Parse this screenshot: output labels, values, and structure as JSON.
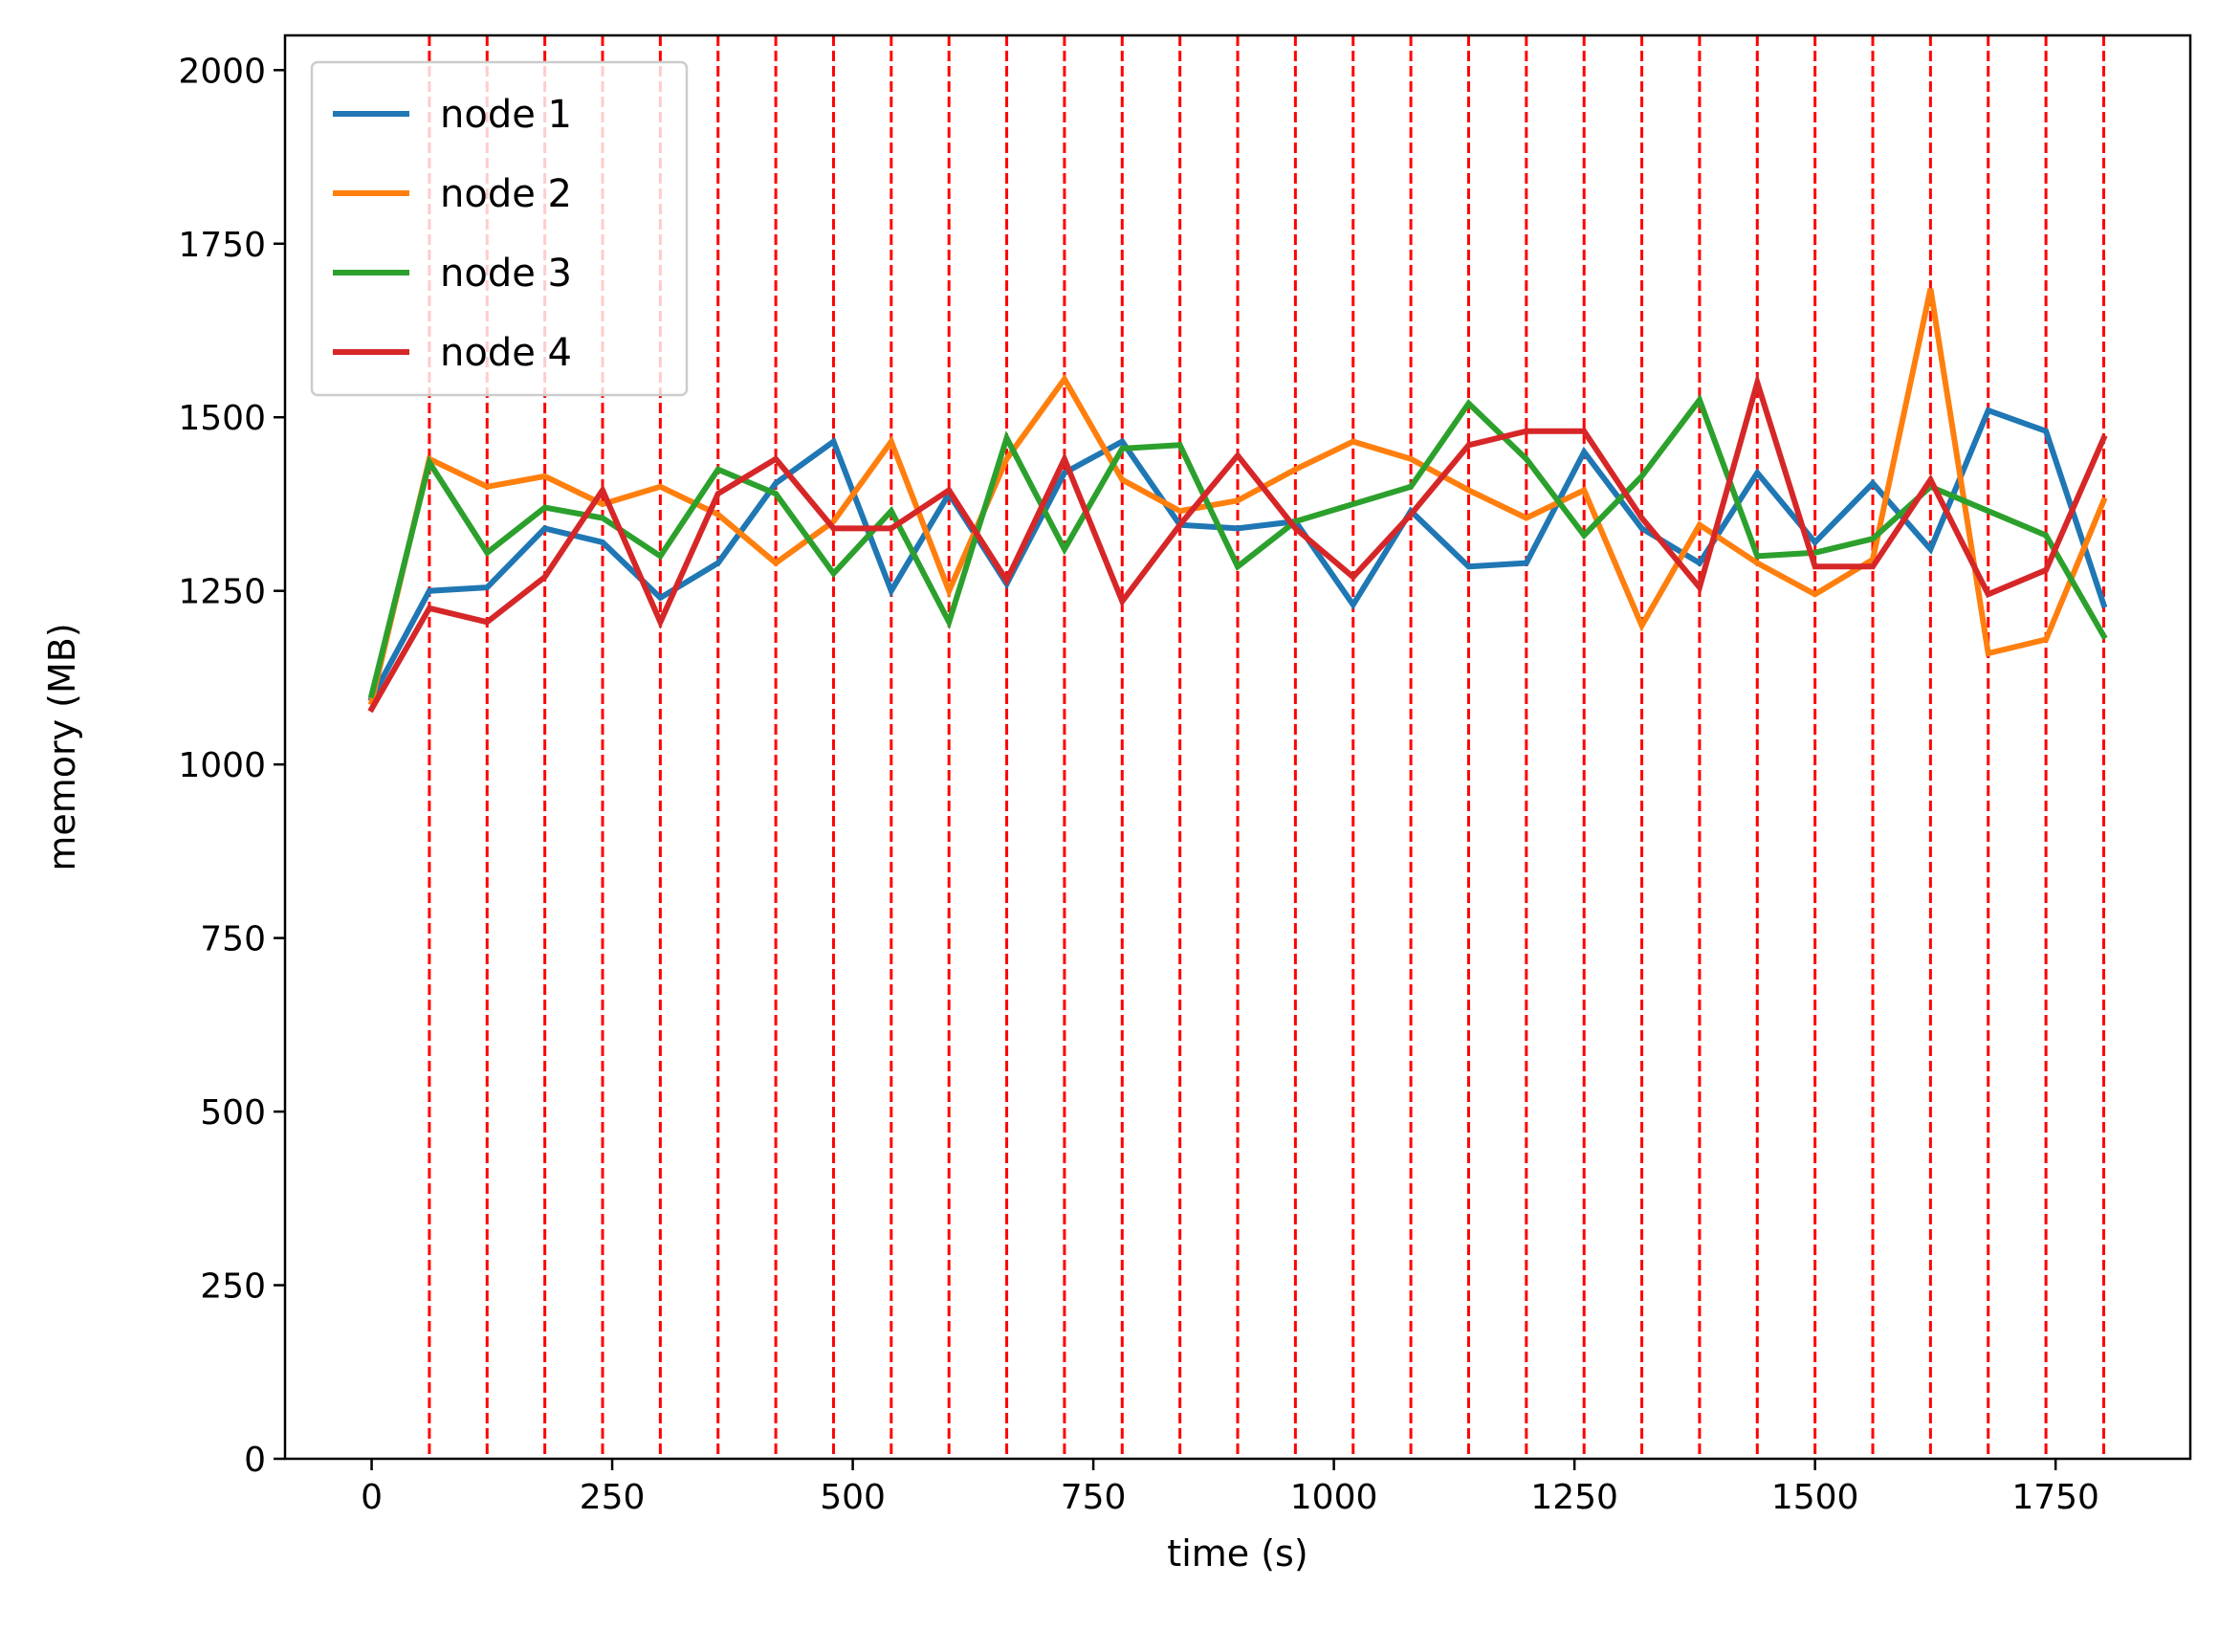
{
  "chart_data": {
    "type": "line",
    "xlabel": "time (s)",
    "ylabel": "memory (MB)",
    "xlim": [
      -90,
      1890
    ],
    "ylim": [
      0,
      2050
    ],
    "xticks": [
      0,
      250,
      500,
      750,
      1000,
      1250,
      1500,
      1750
    ],
    "yticks": [
      0,
      250,
      500,
      750,
      1000,
      1250,
      1500,
      1750,
      2000
    ],
    "grid": false,
    "legend_position": "upper-left",
    "vlines": {
      "color": "#ff0000",
      "style": "dashed",
      "x": [
        60,
        120,
        180,
        240,
        300,
        360,
        420,
        480,
        540,
        600,
        660,
        720,
        780,
        840,
        900,
        960,
        1020,
        1080,
        1140,
        1200,
        1260,
        1320,
        1380,
        1440,
        1500,
        1560,
        1620,
        1680,
        1740,
        1800
      ]
    },
    "x": [
      0,
      60,
      120,
      180,
      240,
      300,
      360,
      420,
      480,
      540,
      600,
      660,
      720,
      780,
      840,
      900,
      960,
      1020,
      1080,
      1140,
      1200,
      1260,
      1320,
      1380,
      1440,
      1500,
      1560,
      1620,
      1680,
      1740,
      1800
    ],
    "series": [
      {
        "name": "node 1",
        "color": "#1f77b4",
        "values": [
          1095,
          1250,
          1255,
          1340,
          1320,
          1240,
          1290,
          1405,
          1465,
          1250,
          1390,
          1260,
          1420,
          1465,
          1345,
          1340,
          1350,
          1230,
          1365,
          1285,
          1290,
          1450,
          1340,
          1290,
          1420,
          1320,
          1405,
          1310,
          1510,
          1480,
          1230
        ]
      },
      {
        "name": "node 2",
        "color": "#ff7f0e",
        "values": [
          1090,
          1440,
          1400,
          1415,
          1375,
          1400,
          1360,
          1290,
          1350,
          1465,
          1250,
          1440,
          1555,
          1410,
          1365,
          1380,
          1425,
          1465,
          1440,
          1395,
          1355,
          1395,
          1200,
          1345,
          1290,
          1245,
          1295,
          1685,
          1160,
          1180,
          1380
        ]
      },
      {
        "name": "node 3",
        "color": "#2ca02c",
        "values": [
          1100,
          1435,
          1305,
          1370,
          1355,
          1300,
          1425,
          1390,
          1275,
          1365,
          1205,
          1470,
          1310,
          1455,
          1460,
          1285,
          1350,
          1375,
          1400,
          1520,
          1440,
          1330,
          1415,
          1525,
          1300,
          1305,
          1325,
          1400,
          1365,
          1330,
          1185
        ]
      },
      {
        "name": "node 4",
        "color": "#d62728",
        "values": [
          1080,
          1225,
          1205,
          1270,
          1395,
          1205,
          1390,
          1440,
          1340,
          1340,
          1395,
          1265,
          1440,
          1235,
          1345,
          1445,
          1340,
          1270,
          1360,
          1460,
          1480,
          1480,
          1355,
          1255,
          1550,
          1285,
          1285,
          1410,
          1245,
          1280,
          1470
        ]
      }
    ]
  }
}
